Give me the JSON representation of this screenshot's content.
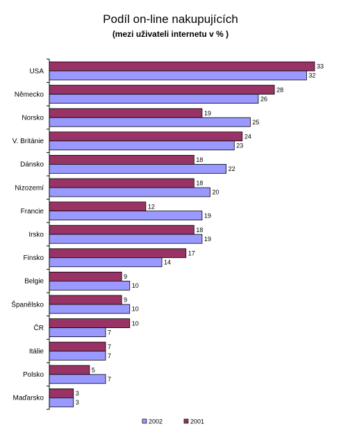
{
  "chart_data": {
    "type": "bar",
    "orientation": "horizontal",
    "title": "Podíl on-line nakupujících",
    "subtitle": "(mezi uživateli internetu v % )",
    "categories": [
      "USA",
      "Německo",
      "Norsko",
      "V. Británie",
      "Dánsko",
      "Nizozemí",
      "Francie",
      "Irsko",
      "Finsko",
      "Belgie",
      "Španělsko",
      "ČR",
      "Itálie",
      "Polsko",
      "Maďarsko"
    ],
    "series": [
      {
        "name": "2001",
        "color": "#993366",
        "values": [
          33,
          28,
          19,
          24,
          18,
          18,
          12,
          18,
          17,
          9,
          9,
          10,
          7,
          5,
          3
        ]
      },
      {
        "name": "2002",
        "color": "#9999FF",
        "values": [
          32,
          26,
          25,
          23,
          22,
          20,
          19,
          19,
          14,
          10,
          10,
          7,
          7,
          7,
          3
        ]
      }
    ],
    "xlim": [
      0,
      33
    ],
    "grid": false,
    "legend_position": "bottom",
    "legend_order": [
      "2002",
      "2001"
    ]
  }
}
